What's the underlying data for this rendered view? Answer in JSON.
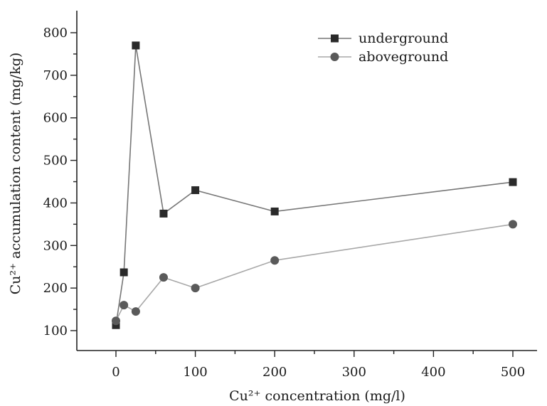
{
  "chart_data": {
    "type": "line",
    "xlabel": "Cu²⁺ concentration (mg/l)",
    "ylabel": "Cu²⁺ accumulation content (mg/kg)",
    "xlim": [
      -50,
      550
    ],
    "ylim": [
      85,
      830
    ],
    "x_ticks": [
      0,
      100,
      200,
      300,
      400,
      500
    ],
    "y_ticks": [
      100,
      200,
      300,
      400,
      500,
      600,
      700,
      800
    ],
    "grid": false,
    "legend_position": "top-right",
    "series": [
      {
        "name": "underground",
        "marker": "square",
        "color": "#2a2a2a",
        "line_color": "#777777",
        "points": [
          [
            0,
            113
          ],
          [
            10,
            237
          ],
          [
            25,
            770
          ],
          [
            60,
            375
          ],
          [
            100,
            430
          ],
          [
            200,
            380
          ],
          [
            500,
            449
          ]
        ]
      },
      {
        "name": "aboveground",
        "marker": "circle",
        "color": "#5a5a5a",
        "line_color": "#a8a8a8",
        "points": [
          [
            0,
            123
          ],
          [
            10,
            160
          ],
          [
            25,
            145
          ],
          [
            60,
            225
          ],
          [
            100,
            200
          ],
          [
            200,
            265
          ],
          [
            500,
            350
          ]
        ]
      }
    ]
  }
}
